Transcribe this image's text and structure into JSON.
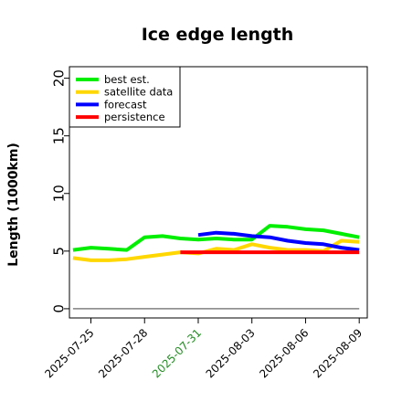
{
  "chart_data": {
    "type": "line",
    "title": "Ice edge length",
    "xlabel": "",
    "ylabel": "Length (1000km)",
    "x_ticks": [
      "2025-07-25",
      "2025-07-28",
      "2025-07-31",
      "2025-08-03",
      "2025-08-06",
      "2025-08-09"
    ],
    "x_tick_colors": [
      "#000000",
      "#000000",
      "#228B22",
      "#000000",
      "#000000",
      "#000000"
    ],
    "x_range": [
      "2025-07-24",
      "2025-08-10"
    ],
    "ylim": [
      -0.8,
      21
    ],
    "y_ticks": [
      0,
      5,
      10,
      15,
      20
    ],
    "grid": false,
    "legend_position": "top-left",
    "series": [
      {
        "name": "best est.",
        "color": "#00ee00",
        "x": [
          "2025-07-24",
          "2025-07-25",
          "2025-07-26",
          "2025-07-27",
          "2025-07-28",
          "2025-07-29",
          "2025-07-30",
          "2025-07-31",
          "2025-08-01",
          "2025-08-02",
          "2025-08-03",
          "2025-08-04",
          "2025-08-05",
          "2025-08-06",
          "2025-08-07",
          "2025-08-08",
          "2025-08-09"
        ],
        "values": [
          5.1,
          5.3,
          5.2,
          5.1,
          6.2,
          6.3,
          6.1,
          6.0,
          6.1,
          6.0,
          6.0,
          7.2,
          7.1,
          6.9,
          6.8,
          6.5,
          6.2
        ]
      },
      {
        "name": "satellite data",
        "color": "#ffd700",
        "x": [
          "2025-07-24",
          "2025-07-25",
          "2025-07-26",
          "2025-07-27",
          "2025-07-28",
          "2025-07-29",
          "2025-07-30",
          "2025-07-31",
          "2025-08-01",
          "2025-08-02",
          "2025-08-03",
          "2025-08-04",
          "2025-08-05",
          "2025-08-06",
          "2025-08-07",
          "2025-08-08",
          "2025-08-09"
        ],
        "values": [
          4.4,
          4.2,
          4.2,
          4.3,
          4.5,
          4.7,
          4.9,
          4.8,
          5.2,
          5.1,
          5.6,
          5.3,
          5.1,
          5.1,
          5.0,
          5.9,
          5.8
        ]
      },
      {
        "name": "forecast",
        "color": "#0000ff",
        "x": [
          "2025-07-31",
          "2025-08-01",
          "2025-08-02",
          "2025-08-03",
          "2025-08-04",
          "2025-08-05",
          "2025-08-06",
          "2025-08-07",
          "2025-08-08",
          "2025-08-09"
        ],
        "values": [
          6.4,
          6.6,
          6.5,
          6.3,
          6.2,
          5.9,
          5.7,
          5.6,
          5.3,
          5.1
        ]
      },
      {
        "name": "persistence",
        "color": "#ff0000",
        "x": [
          "2025-07-30",
          "2025-08-09"
        ],
        "values": [
          4.9,
          4.9
        ]
      },
      {
        "name": "",
        "color": "#808080",
        "x": [
          "2025-07-24",
          "2025-08-09"
        ],
        "values": [
          0,
          0
        ]
      }
    ]
  }
}
